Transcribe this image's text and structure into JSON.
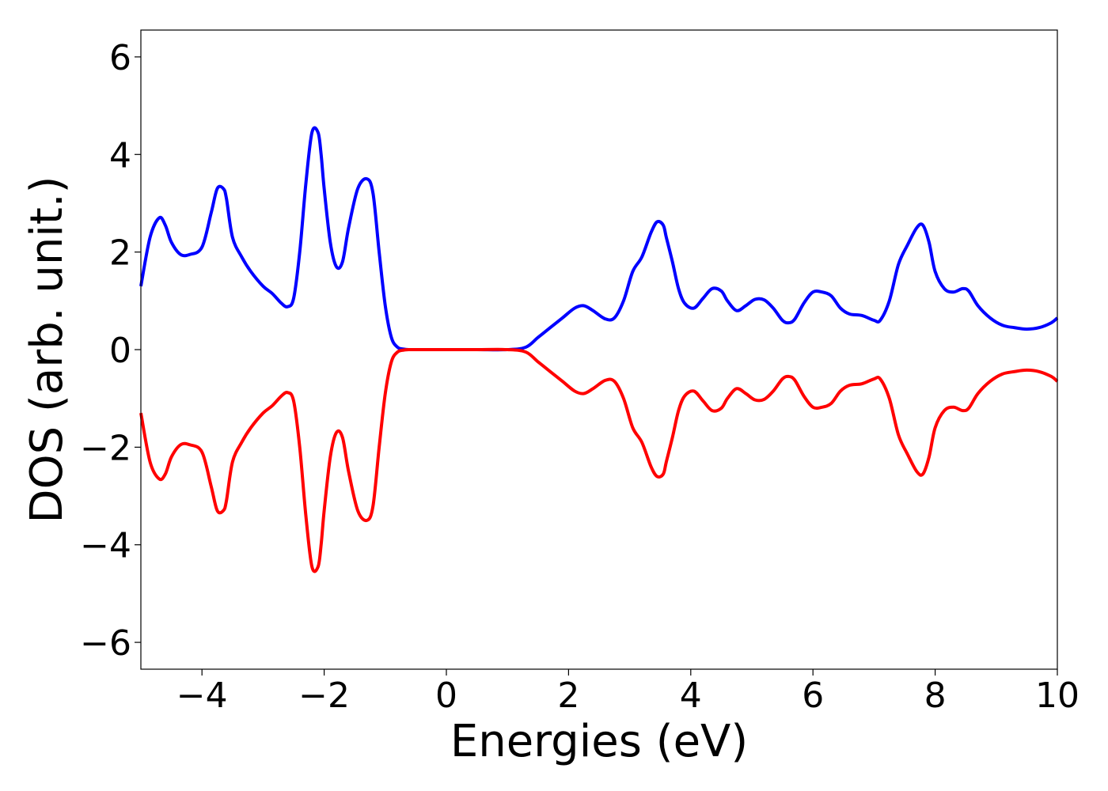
{
  "chart_data": {
    "type": "line",
    "title": "",
    "xlabel": "Energies (eV)",
    "ylabel": "DOS (arb. unit.)",
    "xlim": [
      -5,
      10
    ],
    "ylim": [
      -6.55,
      6.55
    ],
    "grid": false,
    "legend": "none",
    "xticks": [
      -4,
      -2,
      0,
      2,
      4,
      6,
      8,
      10
    ],
    "xtick_labels": [
      "−4",
      "−2",
      "0",
      "2",
      "4",
      "6",
      "8",
      "10"
    ],
    "yticks": [
      -6,
      -4,
      -2,
      0,
      2,
      4,
      6
    ],
    "ytick_labels": [
      "−6",
      "−4",
      "−2",
      "0",
      "2",
      "4",
      "6"
    ],
    "series": [
      {
        "color": "#0000ff",
        "x": [
          -5.0,
          -4.85,
          -4.7,
          -4.6,
          -4.5,
          -4.35,
          -4.2,
          -4.0,
          -3.85,
          -3.75,
          -3.65,
          -3.6,
          -3.5,
          -3.35,
          -3.2,
          -3.0,
          -2.85,
          -2.7,
          -2.6,
          -2.5,
          -2.4,
          -2.3,
          -2.2,
          -2.1,
          -2.05,
          -2.0,
          -1.9,
          -1.8,
          -1.7,
          -1.6,
          -1.45,
          -1.3,
          -1.2,
          -1.1,
          -1.0,
          -0.9,
          -0.8,
          -0.7,
          -0.6,
          -0.5,
          0.0,
          0.5,
          1.0,
          1.3,
          1.5,
          1.7,
          1.9,
          2.1,
          2.25,
          2.4,
          2.6,
          2.75,
          2.9,
          3.05,
          3.2,
          3.35,
          3.45,
          3.55,
          3.6,
          3.7,
          3.8,
          3.9,
          4.05,
          4.2,
          4.35,
          4.5,
          4.6,
          4.75,
          4.9,
          5.05,
          5.2,
          5.35,
          5.5,
          5.6,
          5.7,
          5.85,
          6.0,
          6.15,
          6.3,
          6.45,
          6.6,
          6.8,
          7.0,
          7.1,
          7.25,
          7.4,
          7.55,
          7.7,
          7.8,
          7.9,
          8.0,
          8.15,
          8.3,
          8.45,
          8.55,
          8.7,
          8.9,
          9.1,
          9.3,
          9.5,
          9.7,
          9.9,
          10.0
        ],
        "y": [
          1.3,
          2.3,
          2.7,
          2.55,
          2.2,
          1.95,
          1.95,
          2.1,
          2.8,
          3.3,
          3.3,
          3.1,
          2.3,
          1.9,
          1.6,
          1.3,
          1.15,
          0.95,
          0.88,
          1.05,
          2.0,
          3.4,
          4.45,
          4.45,
          4.0,
          3.3,
          2.2,
          1.7,
          1.8,
          2.5,
          3.3,
          3.5,
          3.2,
          2.0,
          0.9,
          0.25,
          0.05,
          0.01,
          0.0,
          0.0,
          0.0,
          0.0,
          0.0,
          0.05,
          0.25,
          0.45,
          0.65,
          0.85,
          0.9,
          0.8,
          0.63,
          0.65,
          1.0,
          1.6,
          1.9,
          2.4,
          2.62,
          2.55,
          2.3,
          1.8,
          1.25,
          0.95,
          0.85,
          1.05,
          1.25,
          1.2,
          1.0,
          0.8,
          0.9,
          1.03,
          1.02,
          0.85,
          0.6,
          0.55,
          0.62,
          0.95,
          1.18,
          1.18,
          1.1,
          0.85,
          0.73,
          0.7,
          0.6,
          0.6,
          1.0,
          1.75,
          2.15,
          2.5,
          2.55,
          2.2,
          1.6,
          1.25,
          1.18,
          1.25,
          1.2,
          0.9,
          0.65,
          0.5,
          0.45,
          0.42,
          0.45,
          0.55,
          0.65
        ]
      },
      {
        "color": "#ff0000",
        "x": [
          -5.0,
          -4.85,
          -4.7,
          -4.6,
          -4.5,
          -4.35,
          -4.2,
          -4.0,
          -3.85,
          -3.75,
          -3.65,
          -3.6,
          -3.5,
          -3.35,
          -3.2,
          -3.0,
          -2.85,
          -2.7,
          -2.6,
          -2.5,
          -2.4,
          -2.3,
          -2.2,
          -2.1,
          -2.05,
          -2.0,
          -1.9,
          -1.8,
          -1.7,
          -1.6,
          -1.45,
          -1.3,
          -1.2,
          -1.1,
          -1.0,
          -0.9,
          -0.8,
          -0.7,
          -0.6,
          -0.5,
          0.0,
          0.5,
          1.0,
          1.3,
          1.5,
          1.7,
          1.9,
          2.1,
          2.25,
          2.4,
          2.6,
          2.75,
          2.9,
          3.05,
          3.2,
          3.35,
          3.45,
          3.55,
          3.6,
          3.7,
          3.8,
          3.9,
          4.05,
          4.2,
          4.35,
          4.5,
          4.6,
          4.75,
          4.9,
          5.05,
          5.2,
          5.35,
          5.5,
          5.6,
          5.7,
          5.85,
          6.0,
          6.15,
          6.3,
          6.45,
          6.6,
          6.8,
          7.0,
          7.1,
          7.25,
          7.4,
          7.55,
          7.7,
          7.8,
          7.9,
          8.0,
          8.15,
          8.3,
          8.45,
          8.55,
          8.7,
          8.9,
          9.1,
          9.3,
          9.5,
          9.7,
          9.9,
          10.0
        ],
        "y": [
          -1.3,
          -2.3,
          -2.65,
          -2.55,
          -2.2,
          -1.95,
          -1.95,
          -2.1,
          -2.8,
          -3.3,
          -3.3,
          -3.1,
          -2.3,
          -1.9,
          -1.6,
          -1.3,
          -1.15,
          -0.95,
          -0.88,
          -1.05,
          -2.0,
          -3.4,
          -4.45,
          -4.45,
          -4.0,
          -3.3,
          -2.2,
          -1.7,
          -1.8,
          -2.5,
          -3.3,
          -3.5,
          -3.2,
          -2.0,
          -0.9,
          -0.25,
          -0.05,
          -0.01,
          0.0,
          0.0,
          0.0,
          0.0,
          0.0,
          -0.05,
          -0.25,
          -0.45,
          -0.65,
          -0.85,
          -0.9,
          -0.8,
          -0.63,
          -0.65,
          -1.0,
          -1.6,
          -1.9,
          -2.4,
          -2.6,
          -2.55,
          -2.3,
          -1.8,
          -1.25,
          -0.95,
          -0.85,
          -1.05,
          -1.25,
          -1.2,
          -1.0,
          -0.8,
          -0.9,
          -1.03,
          -1.02,
          -0.85,
          -0.6,
          -0.55,
          -0.62,
          -0.95,
          -1.18,
          -1.18,
          -1.1,
          -0.85,
          -0.73,
          -0.7,
          -0.6,
          -0.6,
          -1.0,
          -1.75,
          -2.15,
          -2.5,
          -2.55,
          -2.2,
          -1.6,
          -1.25,
          -1.18,
          -1.25,
          -1.2,
          -0.9,
          -0.65,
          -0.5,
          -0.45,
          -0.42,
          -0.45,
          -0.55,
          -0.65
        ]
      }
    ]
  }
}
